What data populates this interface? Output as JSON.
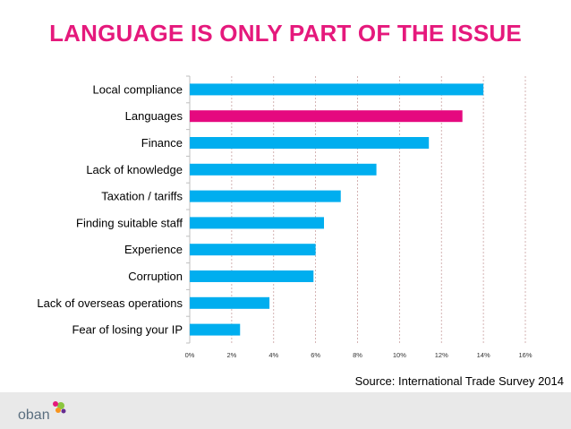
{
  "slide": {
    "title": "LANGUAGE IS ONLY PART OF THE ISSUE",
    "source": "Source: International Trade Survey 2014",
    "colors": {
      "title": "#e5197c",
      "bar_default": "#00aeef",
      "bar_highlight": "#e5097f",
      "footer_bg": "#e9e9e9"
    },
    "logo": {
      "text": "oban",
      "icon": "oban-logo"
    }
  },
  "chart_data": {
    "type": "bar",
    "orientation": "horizontal",
    "categories": [
      "Local compliance",
      "Languages",
      "Finance",
      "Lack of knowledge",
      "Taxation / tariffs",
      "Finding suitable staff",
      "Experience",
      "Corruption",
      "Lack of overseas operations",
      "Fear of losing your IP"
    ],
    "values": [
      14.0,
      13.0,
      11.4,
      8.9,
      7.2,
      6.4,
      6.0,
      5.9,
      3.8,
      2.4
    ],
    "highlight_category": "Languages",
    "xlim": [
      0,
      16
    ],
    "xticks": [
      "0%",
      "2%",
      "4%",
      "6%",
      "8%",
      "10%",
      "12%",
      "14%",
      "16%"
    ],
    "xtick_values": [
      0,
      2,
      4,
      6,
      8,
      10,
      12,
      14,
      16
    ],
    "grid": "vertical dashed"
  }
}
